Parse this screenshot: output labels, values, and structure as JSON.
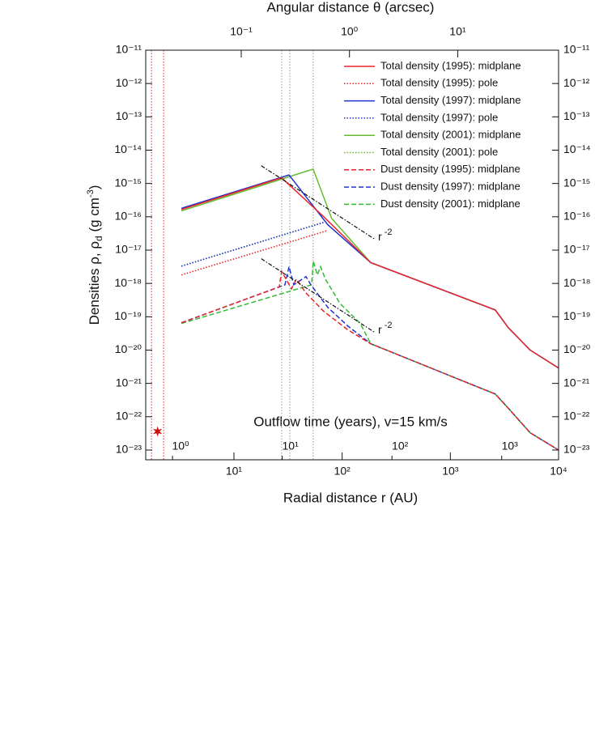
{
  "chart_data": {
    "type": "line",
    "title_top": "Angular distance θ (arcsec)",
    "xlabel": "Radial distance r (AU)",
    "ylabel": [
      "Densities  ρ, ρ",
      "d",
      " (g cm",
      "-3",
      ")"
    ],
    "x3label": "Outflow time (years), v=15 km/s",
    "xscale": "log",
    "yscale": "log",
    "xlim": [
      1.53,
      10000
    ],
    "xticks": [
      {
        "value": 10,
        "label": "10¹"
      },
      {
        "value": 100,
        "label": "10²"
      },
      {
        "value": 1000,
        "label": "10³"
      },
      {
        "value": 10000,
        "label": "10⁴"
      }
    ],
    "x2lim": [
      0.0131,
      85.5
    ],
    "x2ticks": [
      {
        "value": 0.1,
        "label": "10⁻¹"
      },
      {
        "value": 1,
        "label": "10⁰"
      },
      {
        "value": 10,
        "label": "10¹"
      }
    ],
    "x3lim": [
      0.57,
      3300
    ],
    "x3ticks": [
      {
        "value": 1,
        "label": "10⁰"
      },
      {
        "value": 10,
        "label": "10¹"
      },
      {
        "value": 100,
        "label": "10²"
      },
      {
        "value": 1000,
        "label": "10³"
      }
    ],
    "ylim": [
      1e-11,
      5.1e-24
    ],
    "yticks": [
      {
        "value": 1e-11,
        "label": "10⁻¹¹"
      },
      {
        "value": 1e-12,
        "label": "10⁻¹²"
      },
      {
        "value": 1e-13,
        "label": "10⁻¹³"
      },
      {
        "value": 1e-14,
        "label": "10⁻¹⁴"
      },
      {
        "value": 1e-15,
        "label": "10⁻¹⁵"
      },
      {
        "value": 1e-16,
        "label": "10⁻¹⁶"
      },
      {
        "value": 1e-17,
        "label": "10⁻¹⁷"
      },
      {
        "value": 1e-18,
        "label": "10⁻¹⁸"
      },
      {
        "value": 1e-19,
        "label": "10⁻¹⁹"
      },
      {
        "value": 1e-20,
        "label": "10⁻²⁰"
      },
      {
        "value": 1e-21,
        "label": "10⁻²¹"
      },
      {
        "value": 1e-22,
        "label": "10⁻²²"
      },
      {
        "value": 1e-23,
        "label": "10⁻²³"
      }
    ],
    "legend": "upper right",
    "series": [
      {
        "name": "Total density (1995): midplane",
        "color": "#e8262a",
        "style": "solid",
        "x": [
          3.27,
          27.6,
          67.6,
          184,
          2600,
          3430,
          5460,
          10000
        ],
        "values": [
          1.66e-16,
          1.48e-15,
          1e-16,
          4.2e-18,
          1.6e-19,
          4.7e-20,
          1e-20,
          2.9e-21
        ]
      },
      {
        "name": "Total density (1995): pole",
        "color": "#e8262a",
        "style": "dotted",
        "x": [
          3.27,
          73.8
        ],
        "values": [
          1.8e-18,
          3.9e-17
        ]
      },
      {
        "name": "Total density (1997): midplane",
        "color": "#2233cc",
        "style": "solid",
        "x": [
          3.27,
          32.3,
          73.6,
          184,
          2600,
          3430,
          5460,
          10000
        ],
        "values": [
          1.8e-16,
          1.8e-15,
          5.8e-17,
          4.2e-18,
          1.6e-19,
          4.7e-20,
          1e-20,
          2.9e-21
        ]
      },
      {
        "name": "Total density (1997): pole",
        "color": "#2233cc",
        "style": "dotted",
        "x": [
          3.27,
          67.6
        ],
        "values": [
          3.3e-18,
          6.8e-17
        ]
      },
      {
        "name": "Total density (2001): midplane",
        "color": "#66bb33",
        "style": "solid",
        "x": [
          3.27,
          54,
          80,
          184,
          2600,
          3430,
          5460,
          10000
        ],
        "values": [
          1.5e-16,
          2.7e-15,
          8.9e-17,
          4.2e-18,
          1.6e-19,
          4.7e-20,
          1e-20,
          2.9e-21
        ]
      },
      {
        "name": "Total density (2001): pole",
        "color": "#66bb33",
        "style": "dotted",
        "x": [
          3.27,
          67.6
        ],
        "values": [
          3.3e-18,
          6.8e-17
        ]
      },
      {
        "name": "Dust density (1995): midplane",
        "color": "#e8262a",
        "style": "dashed",
        "x": [
          3.27,
          26.2,
          27.6,
          34.0,
          37.7,
          46.3,
          67.6,
          113.5,
          183.7,
          2600,
          3430,
          5460,
          10000
        ],
        "values": [
          6.6e-20,
          7.8e-19,
          2.3e-18,
          6.9e-19,
          1.35e-18,
          5.2e-19,
          1.45e-19,
          4e-20,
          1.55e-20,
          4.8e-22,
          1.8e-22,
          3.3e-23,
          1e-23
        ]
      },
      {
        "name": "Dust density (1997): midplane",
        "color": "#2233cc",
        "style": "dashed",
        "x": [
          3.27,
          29.6,
          32.3,
          35.7,
          46.3,
          51.4,
          73.8,
          113.5,
          183.7,
          2600,
          3430,
          5460,
          10000
        ],
        "values": [
          6.6e-20,
          9.1e-19,
          3.2e-18,
          9.1e-19,
          1.6e-18,
          9.1e-19,
          1.9e-19,
          5.2e-20,
          1.55e-20,
          4.8e-22,
          1.8e-22,
          3.3e-23,
          1e-23
        ]
      },
      {
        "name": "Dust density (2001): midplane",
        "color": "#33bb33",
        "style": "dashed",
        "x": [
          3.27,
          52.2,
          54.1,
          58.9,
          63.1,
          70.0,
          95.5,
          147,
          183.7,
          2600,
          3430,
          5460,
          10000
        ],
        "values": [
          6.3e-20,
          9.1e-19,
          4.7e-18,
          1.8e-18,
          3.2e-18,
          1.35e-18,
          2.5e-19,
          6.3e-20,
          1.55e-20,
          4.8e-22,
          1.8e-22,
          3.3e-23,
          1e-23
        ]
      }
    ],
    "reference_lines": [
      {
        "x": [
          17.9,
          197
        ],
        "values": [
          3.4e-15,
          2.2e-17
        ],
        "label": [
          "r",
          " -2"
        ]
      },
      {
        "x": [
          17.9,
          197
        ],
        "values": [
          5.5e-18,
          3.5e-20
        ],
        "label": [
          "r",
          " -2"
        ]
      }
    ],
    "vlines": [
      {
        "x": 1.73,
        "color": "#e8262a"
      },
      {
        "x": 2.24,
        "color": "#e8262a"
      },
      {
        "x": 27.6,
        "color": "#999999"
      },
      {
        "x": 32.8,
        "color": "#999999"
      },
      {
        "x": 54,
        "color": "#999999"
      }
    ],
    "marker": {
      "x": 1.97,
      "y": 3.6e-23,
      "color": "#cc1111"
    }
  }
}
